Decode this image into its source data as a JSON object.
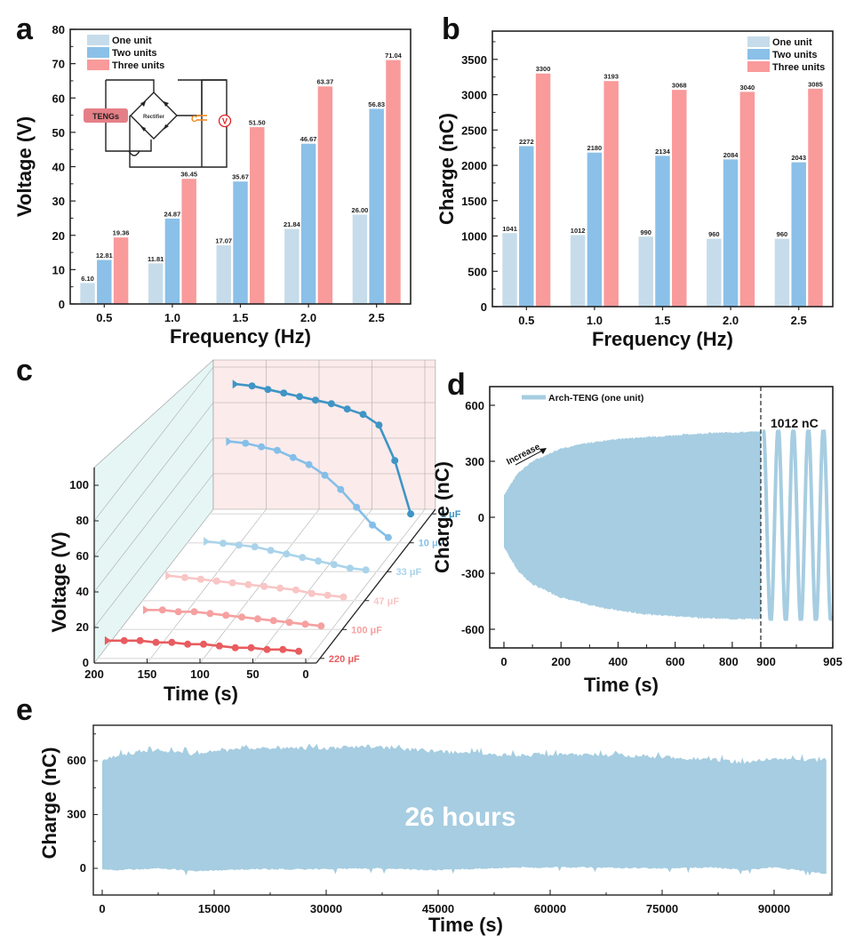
{
  "panels": {
    "a": {
      "label": "a"
    },
    "b": {
      "label": "b"
    },
    "c": {
      "label": "c"
    },
    "d": {
      "label": "d"
    },
    "e": {
      "label": "e"
    }
  },
  "colors": {
    "one_unit": "#c6dcea",
    "two_units": "#8bc0e8",
    "three_units": "#f99a9b",
    "teng_fill": "#a6cde1",
    "c_1uF": "#3e95c6",
    "c_10uF": "#84bfe8",
    "c_33uF": "#a9d3ea",
    "c_47uF": "#f9c5c5",
    "c_100uF": "#f6a0a0",
    "c_220uF": "#e85c5f",
    "wall_left": "#e5f6f5",
    "wall_back": "#fcebeb"
  },
  "inset": {
    "tengs_label": "TENGs",
    "rectifier_label": "Rectifier",
    "capacitor_label": "C",
    "voltmeter_label": "V"
  },
  "chart_data": [
    {
      "id": "a",
      "type": "bar",
      "title": "",
      "xlabel": "Frequency (Hz)",
      "ylabel": "Voltage (V)",
      "categories": [
        "0.5",
        "1.0",
        "1.5",
        "2.0",
        "2.5"
      ],
      "ylim": [
        0,
        80
      ],
      "yticks": [
        0,
        10,
        20,
        30,
        40,
        50,
        60,
        70,
        80
      ],
      "legend_position": "top-left",
      "series": [
        {
          "name": "One unit",
          "values": [
            6.1,
            11.81,
            17.07,
            21.84,
            26.0
          ],
          "labels": [
            "6.10",
            "11.81",
            "17.07",
            "21.84",
            "26.00"
          ]
        },
        {
          "name": "Two units",
          "values": [
            12.81,
            24.87,
            35.67,
            46.67,
            56.83
          ],
          "labels": [
            "12.81",
            "24.87",
            "35.67",
            "46.67",
            "56.83"
          ]
        },
        {
          "name": "Three units",
          "values": [
            19.36,
            36.45,
            51.5,
            63.37,
            71.04
          ],
          "labels": [
            "19.36",
            "36.45",
            "51.50",
            "63.37",
            "71.04"
          ]
        }
      ]
    },
    {
      "id": "b",
      "type": "bar",
      "title": "",
      "xlabel": "Frequency (Hz)",
      "ylabel": "Charge (nC)",
      "categories": [
        "0.5",
        "1.0",
        "1.5",
        "2.0",
        "2.5"
      ],
      "ylim": [
        0,
        3900
      ],
      "yticks": [
        0,
        500,
        1000,
        1500,
        2000,
        2500,
        3000,
        3500
      ],
      "legend_position": "top-right",
      "series": [
        {
          "name": "One unit",
          "values": [
            1041,
            1012,
            990,
            960,
            960
          ],
          "labels": [
            "1041",
            "1012",
            "990",
            "960",
            "960"
          ]
        },
        {
          "name": "Two units",
          "values": [
            2272,
            2180,
            2134,
            2084,
            2043
          ],
          "labels": [
            "2272",
            "2180",
            "2134",
            "2084",
            "2043"
          ]
        },
        {
          "name": "Three units",
          "values": [
            3300,
            3193,
            3068,
            3040,
            3085
          ],
          "labels": [
            "3300",
            "3193",
            "3068",
            "3040",
            "3085"
          ]
        }
      ]
    },
    {
      "id": "c",
      "type": "line",
      "title": "",
      "xlabel": "Time (s)",
      "ylabel": "Voltage (V)",
      "xlim": [
        200,
        0
      ],
      "xticks": [
        "200",
        "150",
        "100",
        "50",
        "0"
      ],
      "ylim": [
        0,
        110
      ],
      "yticks": [
        "0",
        "20",
        "40",
        "60",
        "80",
        "100"
      ],
      "projection": "3d-waterfall",
      "grid": true,
      "x": [
        190,
        175,
        160,
        145,
        130,
        115,
        100,
        85,
        70,
        55,
        40,
        25,
        10
      ],
      "series": [
        {
          "name": "1 μF",
          "label": "1 μF",
          "values": [
            null,
            73,
            72,
            70,
            68,
            66,
            64,
            62,
            59,
            56,
            50,
            30,
            0
          ]
        },
        {
          "name": "10 μF",
          "label": "10 μF",
          "values": [
            null,
            null,
            57,
            56,
            54,
            52,
            48,
            44,
            38,
            30,
            20,
            10,
            3
          ]
        },
        {
          "name": "33 μF",
          "label": "33 μF",
          "values": [
            null,
            null,
            17,
            16,
            15,
            14,
            12,
            10,
            8,
            6,
            4,
            2,
            1
          ]
        },
        {
          "name": "47 μF",
          "label": "47 μF",
          "values": [
            null,
            14,
            13,
            12,
            11,
            10,
            9,
            8,
            7,
            6,
            4,
            3,
            2
          ]
        },
        {
          "name": "100 μF",
          "label": "100 μF",
          "values": [
            null,
            11,
            11,
            10,
            10,
            9,
            8,
            7,
            6,
            5,
            4,
            3,
            2
          ]
        },
        {
          "name": "220 μF",
          "label": "220 μF",
          "values": [
            10,
            10,
            10,
            9,
            9,
            8,
            8,
            7,
            6,
            6,
            5,
            5,
            4
          ]
        }
      ]
    },
    {
      "id": "d",
      "type": "area",
      "title": "",
      "xlabel": "Time (s)",
      "ylabel": "Charge (nC)",
      "xticks": [
        "0",
        "200",
        "400",
        "600",
        "800",
        "900",
        "905"
      ],
      "xaxis_note": "broken axis: 0–900 s compressed, 900–905 s expanded",
      "ylim": [
        -700,
        700
      ],
      "yticks": [
        "-600",
        "-300",
        "0",
        "300",
        "600"
      ],
      "legend": "Arch-TENG (one unit)",
      "legend_position": "top-left",
      "annotation_increase": "Increase",
      "annotation_peak": "1012 nC",
      "envelope_x": [
        0,
        50,
        100,
        200,
        300,
        400,
        500,
        600,
        700,
        800,
        900
      ],
      "envelope_upper": [
        120,
        240,
        300,
        370,
        400,
        420,
        430,
        440,
        450,
        455,
        460
      ],
      "envelope_lower": [
        -160,
        -290,
        -360,
        -430,
        -470,
        -500,
        -520,
        -530,
        -540,
        -545,
        -545
      ],
      "oscillation": {
        "x_range": [
          900,
          905
        ],
        "cycles": 4.6,
        "max": 460,
        "min": -545
      }
    },
    {
      "id": "e",
      "type": "area",
      "title": "",
      "xlabel": "Time (s)",
      "ylabel": "Charge (nC)",
      "xlim": [
        -1000,
        99000
      ],
      "xticks": [
        "0",
        "15000",
        "30000",
        "45000",
        "60000",
        "75000",
        "90000"
      ],
      "ylim": [
        -150,
        800
      ],
      "yticks": [
        "0",
        "300",
        "600"
      ],
      "annotation": "26 hours",
      "envelope_x": [
        0,
        2000,
        8000,
        12000,
        20000,
        30000,
        36000,
        45000,
        55000,
        65000,
        75000,
        82000,
        86000,
        90000,
        97000
      ],
      "envelope_upper": [
        620,
        650,
        680,
        660,
        690,
        690,
        700,
        670,
        650,
        655,
        640,
        625,
        605,
        630,
        620
      ],
      "envelope_lower": [
        -10,
        -10,
        0,
        -15,
        -5,
        -5,
        0,
        -10,
        5,
        5,
        0,
        5,
        -10,
        5,
        -30
      ]
    }
  ]
}
